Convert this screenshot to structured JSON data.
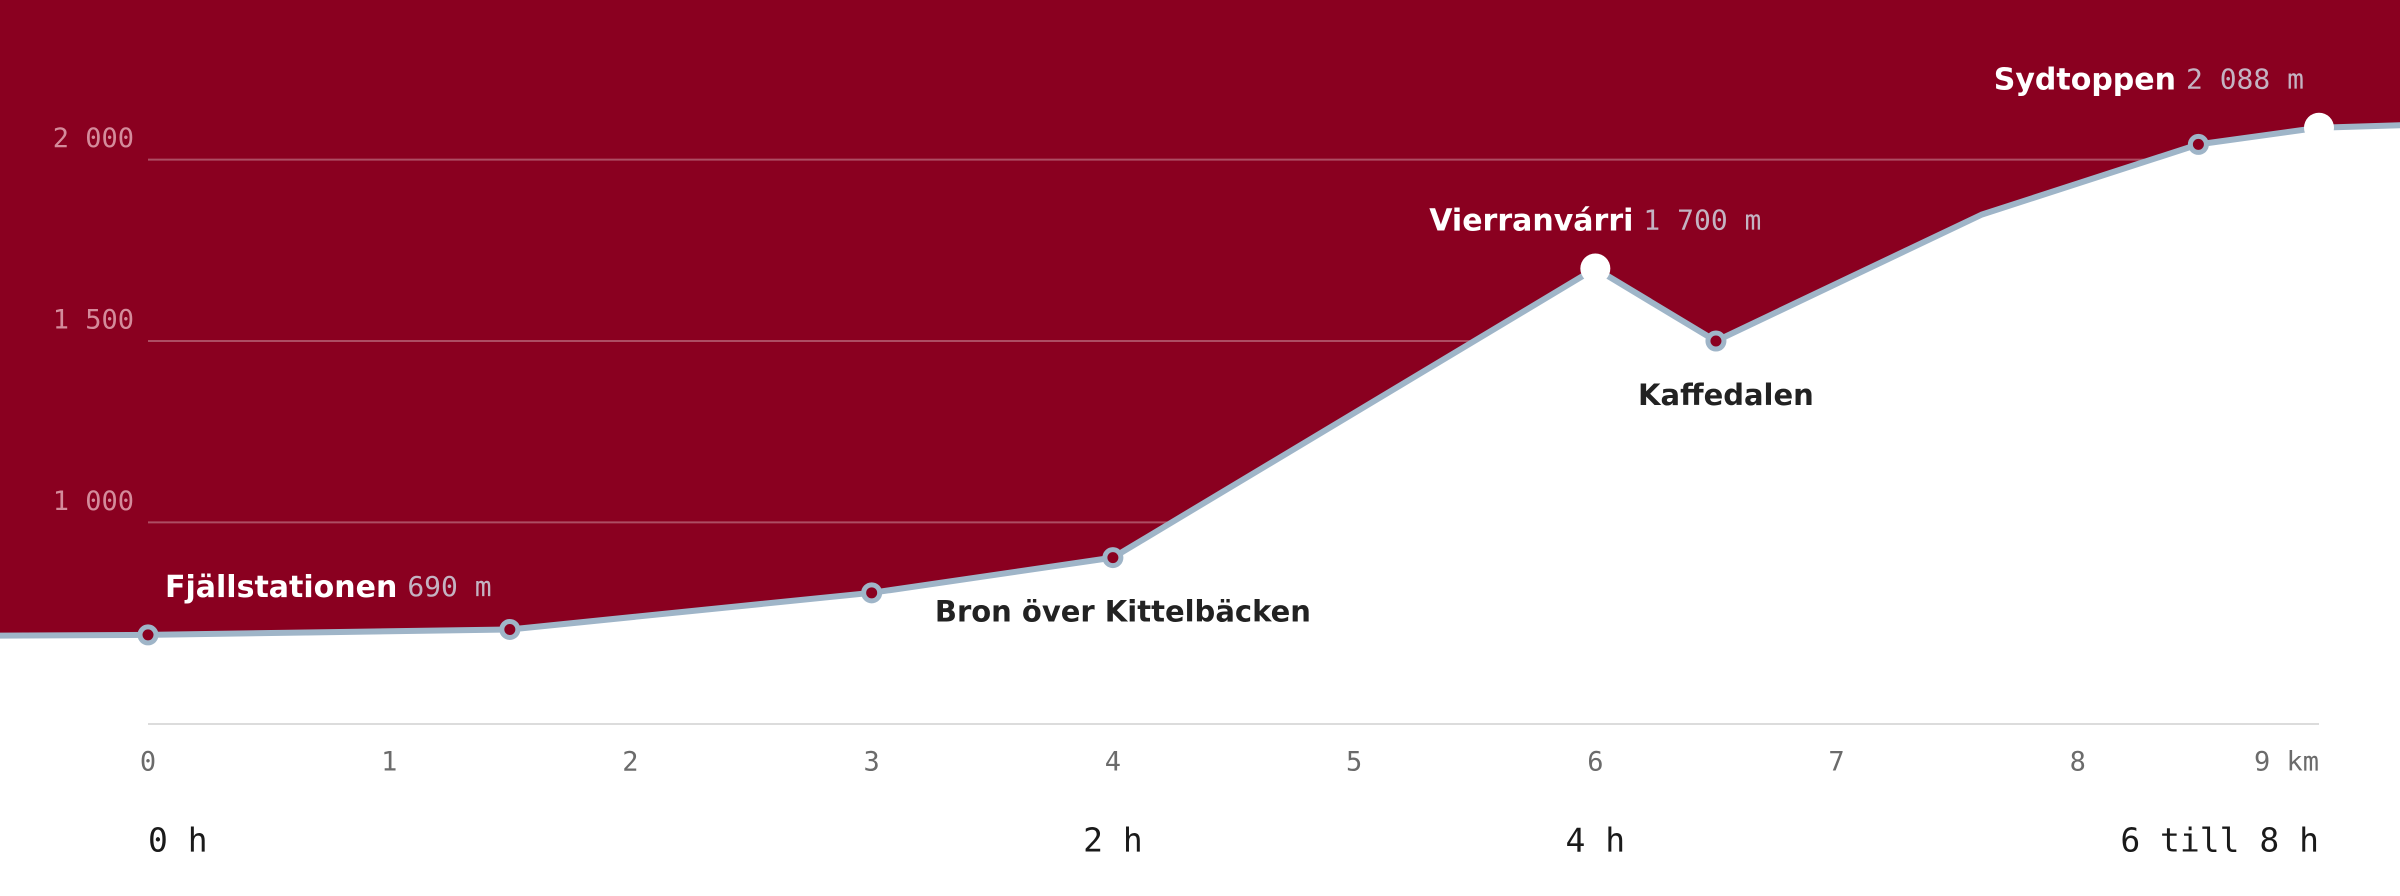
{
  "chart_data": {
    "type": "line",
    "x": [
      -0.62,
      0,
      1.5,
      3,
      4,
      6,
      6.5,
      7.6,
      8.5,
      9,
      9.34
    ],
    "values": [
      688,
      690,
      705,
      806,
      903,
      1700,
      1500,
      1848,
      2042,
      2088,
      2095
    ],
    "value_labels": [
      null,
      "690 m",
      null,
      null,
      null,
      "1 700 m",
      null,
      null,
      null,
      "2 088 m",
      null
    ],
    "point_names": [
      null,
      "Fjällstationen",
      null,
      null,
      "Bron över Kittelbäcken",
      "Vierranvárri",
      "Kaffedalen",
      null,
      null,
      "Sydtoppen",
      null
    ],
    "markers": [
      "none",
      "small",
      "small",
      "small",
      "small",
      "large",
      "small",
      "none",
      "small",
      "large",
      "none"
    ],
    "color": "#9fb5c8",
    "background_color": "#8a0020",
    "xlim": [
      0,
      9
    ],
    "xticks": [
      0,
      1,
      2,
      3,
      4,
      5,
      6,
      7,
      8,
      {
        "value": 9,
        "label": "9 km"
      }
    ],
    "ylim": [
      440,
      2440
    ],
    "yticks": [
      {
        "value": 1000,
        "label": "1 000"
      },
      {
        "value": 1500,
        "label": "1 500"
      },
      {
        "value": 2000,
        "label": "2 000"
      }
    ],
    "grid": true,
    "time_marks": [
      {
        "value": 0,
        "label": "0 h"
      },
      {
        "value": 4,
        "label": "2 h"
      },
      {
        "value": 6,
        "label": "4 h"
      },
      {
        "value": 9,
        "label": "6 till 8 h"
      }
    ]
  }
}
